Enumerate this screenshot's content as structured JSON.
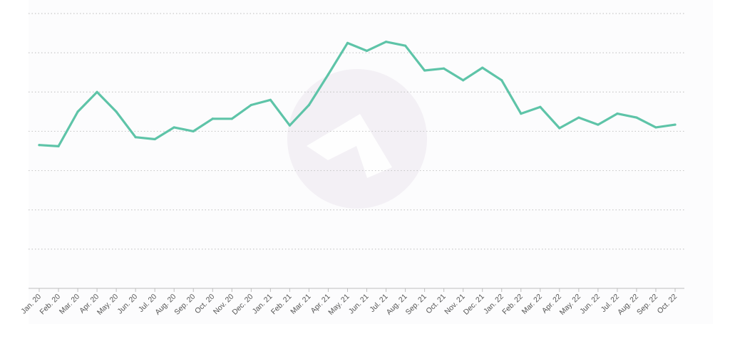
{
  "colors": {
    "line": "#5ec4a8",
    "grid": "#c9c9c9",
    "axis": "#bdbdbd",
    "tick_label": "#555555",
    "plot_bg": "#fcfcfd",
    "watermark": "#f3f0f5"
  },
  "watermark": {
    "icon": "logo-mark-icon"
  },
  "chart_data": {
    "type": "line",
    "title": "",
    "xlabel": "",
    "ylabel": "",
    "grid": "horizontal-dotted",
    "y_tick_labels_shown": false,
    "ylim": [
      0,
      7
    ],
    "categories": [
      "Jan. 20",
      "Feb. 20",
      "Mar. 20",
      "Apr. 20",
      "May. 20",
      "Jun. 20",
      "Jul. 20",
      "Aug. 20",
      "Sep. 20",
      "Oct. 20",
      "Nov. 20",
      "Dec. 20",
      "Jan. 21",
      "Feb. 21",
      "Mar. 21",
      "Apr. 21",
      "May. 21",
      "Jun. 21",
      "Jul. 21",
      "Aug. 21",
      "Sep. 21",
      "Oct. 21",
      "Nov. 21",
      "Dec. 21",
      "Jan. 22",
      "Feb. 22",
      "Mar. 22",
      "Apr. 22",
      "May. 22",
      "Jun. 22",
      "Jul. 22",
      "Aug. 22",
      "Sep. 22",
      "Oct. 22"
    ],
    "series": [
      {
        "values": [
          3.65,
          3.62,
          4.5,
          5.0,
          4.5,
          3.85,
          3.8,
          4.1,
          4.0,
          4.32,
          4.32,
          4.67,
          4.8,
          4.15,
          4.67,
          5.45,
          6.25,
          6.05,
          6.28,
          6.18,
          5.55,
          5.6,
          5.3,
          5.62,
          5.3,
          4.45,
          4.62,
          4.08,
          4.35,
          4.17,
          4.45,
          4.35,
          4.1,
          4.17
        ]
      }
    ]
  }
}
